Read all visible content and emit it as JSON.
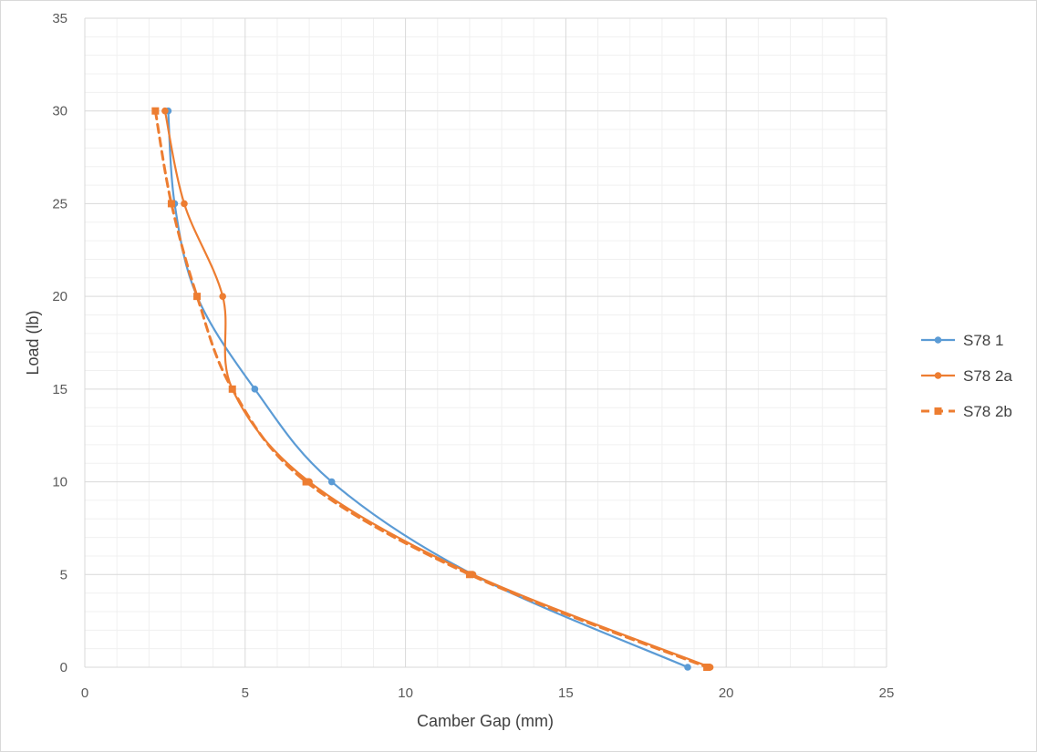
{
  "chart_data": {
    "type": "scatter",
    "title": "",
    "xlabel": "Camber  Gap (mm)",
    "ylabel": "Load (lb)",
    "xlim": [
      0,
      25
    ],
    "ylim": [
      0,
      35
    ],
    "xticks": [
      0,
      5,
      10,
      15,
      20,
      25
    ],
    "yticks": [
      0,
      5,
      10,
      15,
      20,
      25,
      30,
      35
    ],
    "grid": true,
    "minor_grid": true,
    "smoothed_lines": true,
    "legend_position": "right",
    "series": [
      {
        "name": "S78 1",
        "color": "#5B9BD5",
        "marker": "circle",
        "line_style": "solid",
        "points": [
          [
            2.6,
            30
          ],
          [
            2.8,
            25
          ],
          [
            3.5,
            20
          ],
          [
            5.3,
            15
          ],
          [
            7.7,
            10
          ],
          [
            12.1,
            5
          ],
          [
            18.8,
            0
          ]
        ]
      },
      {
        "name": "S78 2a",
        "color": "#ED7D31",
        "marker": "circle",
        "line_style": "solid",
        "points": [
          [
            2.5,
            30
          ],
          [
            3.1,
            25
          ],
          [
            4.3,
            20
          ],
          [
            4.6,
            15
          ],
          [
            7.0,
            10
          ],
          [
            12.1,
            5
          ],
          [
            19.5,
            0
          ]
        ]
      },
      {
        "name": "S78 2b",
        "color": "#ED7D31",
        "marker": "square",
        "line_style": "dashed",
        "points": [
          [
            2.2,
            30
          ],
          [
            2.7,
            25
          ],
          [
            3.5,
            20
          ],
          [
            4.6,
            15
          ],
          [
            6.9,
            10
          ],
          [
            12.0,
            5
          ],
          [
            19.4,
            0
          ]
        ]
      }
    ]
  }
}
